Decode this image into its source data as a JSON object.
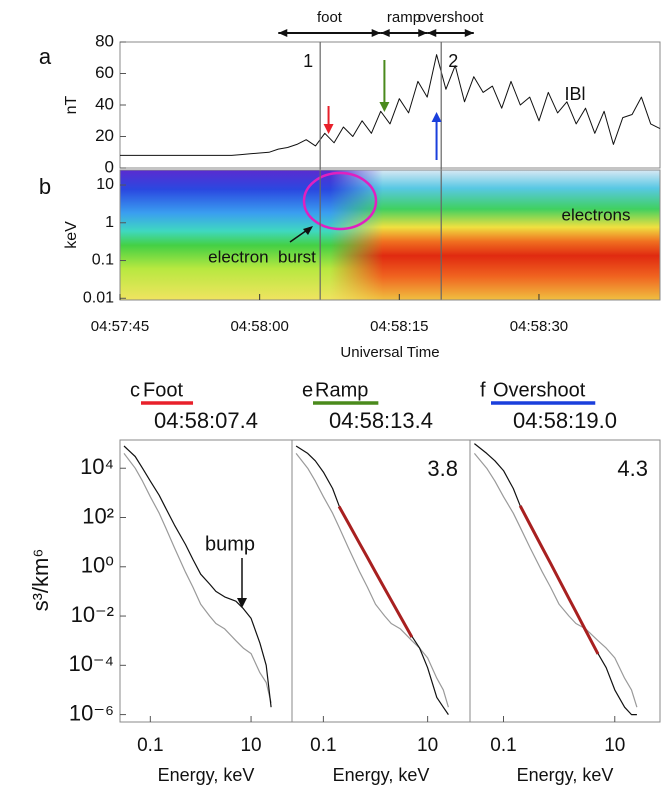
{
  "chart_data": [
    {
      "type": "line",
      "panel_label": "a",
      "ylabel": "nT",
      "annotation": "IBl",
      "xlim": [
        "04:57:45",
        "04:58:43"
      ],
      "ylim": [
        0,
        80
      ],
      "yticks": [
        0,
        20,
        40,
        60,
        80
      ],
      "x": [
        "04:57:45",
        "04:57:46",
        "04:57:47",
        "04:57:48",
        "04:57:49",
        "04:57:50",
        "04:57:51",
        "04:57:52",
        "04:57:53",
        "04:57:54",
        "04:57:55",
        "04:57:56",
        "04:57:57",
        "04:57:58",
        "04:57:59",
        "04:58:00",
        "04:58:01",
        "04:58:02",
        "04:58:03",
        "04:58:04",
        "04:58:05",
        "04:58:06",
        "04:58:07",
        "04:58:08",
        "04:58:09",
        "04:58:10",
        "04:58:11",
        "04:58:12",
        "04:58:13",
        "04:58:14",
        "04:58:15",
        "04:58:16",
        "04:58:17",
        "04:58:18",
        "04:58:19",
        "04:58:20",
        "04:58:21",
        "04:58:22",
        "04:58:23",
        "04:58:24",
        "04:58:25",
        "04:58:26",
        "04:58:27",
        "04:58:28",
        "04:58:29",
        "04:58:30",
        "04:58:31",
        "04:58:32",
        "04:58:33",
        "04:58:34",
        "04:58:35",
        "04:58:36",
        "04:58:37",
        "04:58:38",
        "04:58:39",
        "04:58:40",
        "04:58:41",
        "04:58:42",
        "04:58:43"
      ],
      "series": [
        {
          "color": "#111111",
          "values": [
            8,
            8,
            8,
            8,
            8,
            8,
            8,
            8,
            8,
            8,
            8,
            8,
            8,
            8.5,
            9,
            9.5,
            10,
            12,
            13,
            15,
            18,
            14,
            22,
            16,
            26,
            20,
            30,
            22,
            36,
            28,
            44,
            35,
            55,
            45,
            72,
            50,
            65,
            42,
            58,
            48,
            52,
            38,
            55,
            40,
            45,
            30,
            48,
            35,
            42,
            28,
            38,
            22,
            36,
            15,
            32,
            34,
            45,
            28,
            25
          ]
        }
      ],
      "markers": [
        {
          "x": "04:58:06.5",
          "label": "1"
        },
        {
          "x": "04:58:19.5",
          "label": "2"
        }
      ],
      "intervals": [
        {
          "name": "foot",
          "start": "04:58:02",
          "end": "04:58:13"
        },
        {
          "name": "ramp",
          "start": "04:58:13",
          "end": "04:58:18"
        },
        {
          "name": "overshoot",
          "start": "04:58:18",
          "end": "04:58:23"
        }
      ]
    },
    {
      "type": "spectrogram",
      "panel_label": "b",
      "ylabel": "keV",
      "log_y": true,
      "ylim": [
        0.009,
        25
      ],
      "yticks": [
        10,
        1,
        0.1,
        0.01
      ],
      "xlim": [
        "04:57:45",
        "04:58:43"
      ],
      "xticks": [
        "04:57:45",
        "04:58:00",
        "04:58:15",
        "04:58:30"
      ],
      "xlabel": "Universal Time",
      "annotations": [
        "electrons",
        "electron  burst"
      ]
    },
    {
      "type": "line",
      "panel_label": "c",
      "title": "Foot",
      "color": "#e8202a",
      "time": "04:58:07.4",
      "log_x": true,
      "log_y": true,
      "xlim": [
        0.025,
        65
      ],
      "ylim": [
        5e-07,
        140000
      ],
      "xticks": [
        0.1,
        10
      ],
      "yticks": [
        {
          "value": 10000,
          "label": "10⁴"
        },
        {
          "value": 100,
          "label": "10²"
        },
        {
          "value": 1,
          "label": "10⁰"
        },
        {
          "value": 0.01,
          "label": "10⁻²"
        },
        {
          "value": 0.0001,
          "label": "10⁻⁴"
        },
        {
          "value": 1e-06,
          "label": "10⁻⁶"
        }
      ],
      "ylabel": "s³/km⁶",
      "xlabel": "Energy, keV",
      "annotation": "bump",
      "x": [
        0.03,
        0.05,
        0.07,
        0.1,
        0.15,
        0.2,
        0.3,
        0.5,
        0.7,
        1,
        1.5,
        2,
        3,
        5,
        7,
        10,
        15,
        20,
        25
      ],
      "series": [
        {
          "color": "#9a9a9a",
          "values": [
            40000,
            10000,
            3000,
            700,
            150,
            40,
            6,
            0.6,
            0.15,
            0.03,
            0.01,
            0.005,
            0.003,
            0.001,
            0.0005,
            0.0003,
            5e-05,
            2e-05,
            3e-06
          ]
        },
        {
          "color": "#111111",
          "values": [
            80000,
            30000,
            10000,
            3000,
            800,
            250,
            50,
            8,
            2,
            0.5,
            0.2,
            0.1,
            0.06,
            0.04,
            0.02,
            0.008,
            0.0008,
            0.0001,
            2e-06
          ]
        }
      ]
    },
    {
      "type": "line",
      "panel_label": "e",
      "title": "Ramp",
      "color": "#4a8a1c",
      "time": "04:58:13.4",
      "log_x": true,
      "log_y": true,
      "xlim": [
        0.025,
        65
      ],
      "ylim": [
        5e-07,
        140000
      ],
      "xticks": [
        0.1,
        10
      ],
      "xlabel": "Energy, keV",
      "annotation": "3.8",
      "x": [
        0.03,
        0.05,
        0.07,
        0.1,
        0.15,
        0.2,
        0.3,
        0.5,
        0.7,
        1,
        1.5,
        2,
        3,
        5,
        7,
        10,
        15,
        20,
        25
      ],
      "series": [
        {
          "color": "#9a9a9a",
          "values": [
            40000,
            10000,
            3000,
            700,
            150,
            40,
            6,
            0.6,
            0.15,
            0.03,
            0.01,
            0.005,
            0.003,
            0.001,
            0.0005,
            0.0002,
            3e-05,
            1e-05,
            2e-06
          ]
        },
        {
          "color": "#111111",
          "values": [
            80000,
            40000,
            20000,
            7000,
            1500,
            300,
            60,
            9,
            2.4,
            0.6,
            0.13,
            0.045,
            0.01,
            0.0015,
            0.0005,
            8e-05,
            5e-06,
            2e-06,
            1e-06
          ]
        },
        {
          "color": "#a82020",
          "values": [
            null,
            null,
            null,
            null,
            null,
            280,
            60,
            8.6,
            2.4,
            0.61,
            0.13,
            0.044,
            0.0095,
            0.0014,
            null,
            null,
            null,
            null,
            null
          ]
        }
      ]
    },
    {
      "type": "line",
      "panel_label": "f",
      "title": "Overshoot",
      "color": "#1a3fdc",
      "time": "04:58:19.0",
      "log_x": true,
      "log_y": true,
      "xlim": [
        0.025,
        65
      ],
      "ylim": [
        5e-07,
        140000
      ],
      "xticks": [
        0.1,
        10
      ],
      "xlabel": "Energy, keV",
      "annotation": "4.3",
      "x": [
        0.03,
        0.05,
        0.07,
        0.1,
        0.15,
        0.2,
        0.3,
        0.5,
        0.7,
        1,
        1.5,
        2,
        3,
        5,
        7,
        10,
        15,
        20,
        25
      ],
      "series": [
        {
          "color": "#9a9a9a",
          "values": [
            40000,
            10000,
            3000,
            700,
            150,
            40,
            6,
            0.6,
            0.15,
            0.03,
            0.01,
            0.005,
            0.003,
            0.001,
            0.0005,
            0.0002,
            3e-05,
            1e-05,
            2e-06
          ]
        },
        {
          "color": "#111111",
          "values": [
            100000,
            40000,
            20000,
            8000,
            1500,
            300,
            52,
            5.8,
            1.4,
            0.3,
            0.052,
            0.015,
            0.0026,
            0.0003,
            8e-05,
            1e-05,
            2e-06,
            1e-06,
            1e-06
          ]
        },
        {
          "color": "#a82020",
          "values": [
            null,
            null,
            null,
            null,
            null,
            300,
            52,
            5.8,
            1.4,
            0.3,
            0.052,
            0.015,
            0.0026,
            0.00029,
            null,
            null,
            null,
            null,
            null
          ]
        }
      ]
    }
  ]
}
